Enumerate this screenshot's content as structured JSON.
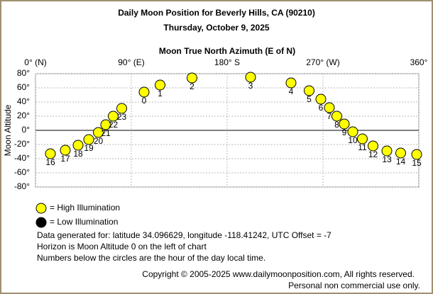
{
  "chart_data": {
    "type": "scatter",
    "title": "Daily Moon Position for Beverly Hills, CA (90210)",
    "subtitle": "Thursday, October 9, 2025",
    "x_label": "Moon True North Azimuth (E of N)",
    "y_label": "Moon Altitude",
    "xlim": [
      0,
      360
    ],
    "xticks": [
      {
        "value": 0,
        "label": "0° (N)"
      },
      {
        "value": 90,
        "label": "90° (E)"
      },
      {
        "value": 180,
        "label": "180° S"
      },
      {
        "value": 270,
        "label": "270° (W)"
      },
      {
        "value": 360,
        "label": "360°"
      }
    ],
    "ylim": [
      -80,
      80
    ],
    "yticks": [
      {
        "value": 80,
        "label": "80°"
      },
      {
        "value": 60,
        "label": "60°"
      },
      {
        "value": 40,
        "label": "40°"
      },
      {
        "value": 20,
        "label": "20°"
      },
      {
        "value": 0,
        "label": "0°"
      },
      {
        "value": -20,
        "label": "-20°"
      },
      {
        "value": -40,
        "label": "-40°"
      },
      {
        "value": -60,
        "label": "-60°"
      },
      {
        "value": -80,
        "label": "-80°"
      }
    ],
    "grid": true,
    "series": [
      {
        "name": "= High Illumination",
        "color": "#ffff00",
        "x": [
          14,
          28,
          40,
          50,
          59,
          66,
          73,
          81,
          102,
          117,
          147,
          202,
          240,
          257,
          268,
          276,
          283,
          290,
          298,
          307,
          317,
          330,
          343,
          358
        ],
        "values": [
          -33,
          -28,
          -21,
          -13,
          -3,
          8,
          20,
          31,
          54,
          64,
          74,
          75,
          67,
          56,
          44,
          32,
          20,
          9,
          -2,
          -12,
          -22,
          -29,
          -32,
          -34
        ],
        "labels": [
          16,
          17,
          18,
          19,
          20,
          21,
          22,
          23,
          0,
          1,
          2,
          3,
          4,
          5,
          6,
          7,
          8,
          9,
          10,
          11,
          12,
          13,
          14,
          15
        ]
      },
      {
        "name": "= Low Illumination",
        "color": "#000000",
        "x": [],
        "values": [],
        "labels": []
      }
    ],
    "notes": [
      "Data generated for: latitude 34.096629, longitude -118.41242, UTC Offset = -7",
      "Horizon is Moon Altitude 0 on the left of chart",
      "Numbers below the circles are the hour of the day local time."
    ],
    "copyright": [
      "Copyright © 2005-2025 www.dailymoonposition.com, All rights reserved.",
      "Personal non commercial use only."
    ]
  }
}
